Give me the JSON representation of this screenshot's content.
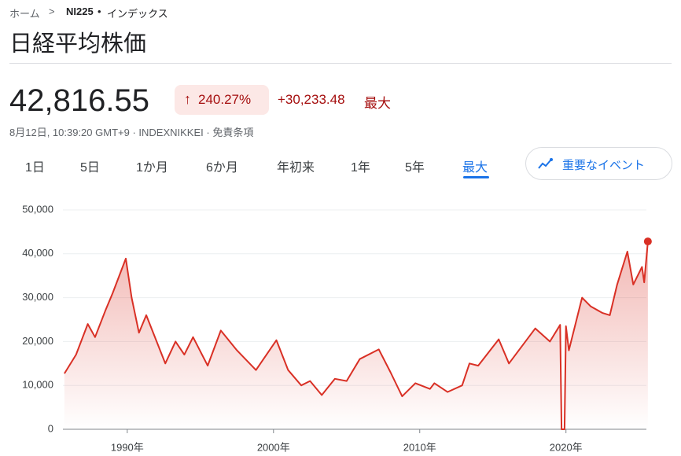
{
  "breadcrumb": {
    "home": "ホーム",
    "symbol": "NI225",
    "kind": "インデックス"
  },
  "title": "日経平均株価",
  "price": "42,816.55",
  "change_percent": "240.27%",
  "change": "+30,233.48",
  "period": "最大",
  "info": {
    "time": "8月12日, 10:39:20 GMT+9",
    "exchange": "INDEXNIKKEI",
    "disclaimer": "免責条項"
  },
  "tabs": [
    "1日",
    "5日",
    "1か月",
    "6か月",
    "年初来",
    "1年",
    "5年",
    "最大"
  ],
  "events_button": "重要なイベント",
  "chart_data": {
    "type": "line",
    "x": [
      1985.7,
      1986.5,
      1987.3,
      1987.8,
      1988.5,
      1989.0,
      1989.9,
      1990.3,
      1990.8,
      1991.3,
      1992.6,
      1993.3,
      1993.9,
      1994.5,
      1995.5,
      1996.4,
      1997.5,
      1998.8,
      2000.2,
      2001.0,
      2001.9,
      2002.5,
      2003.3,
      2004.2,
      2005.0,
      2005.9,
      2007.2,
      2008.0,
      2008.8,
      2009.7,
      2010.7,
      2011.0,
      2011.9,
      2012.9,
      2013.4,
      2014.0,
      2015.4,
      2016.1,
      2017.9,
      2018.9,
      2019.6,
      2019.7,
      2019.9,
      2020.0,
      2020.2,
      2021.1,
      2021.7,
      2022.5,
      2023.0,
      2023.5,
      2024.2,
      2024.6,
      2025.2,
      2025.35,
      2025.6
    ],
    "series": [
      {
        "color": "#d93025",
        "values": [
          12700,
          17000,
          24000,
          21000,
          27000,
          31000,
          38900,
          30000,
          22000,
          26000,
          15000,
          20000,
          17000,
          21000,
          14500,
          22500,
          18000,
          13500,
          20300,
          13500,
          10000,
          11000,
          7800,
          11500,
          11000,
          16000,
          18200,
          13000,
          7500,
          10500,
          9200,
          10500,
          8500,
          10000,
          15000,
          14500,
          20500,
          15000,
          23000,
          20000,
          23800,
          0,
          0,
          23500,
          18000,
          30000,
          28000,
          26500,
          26000,
          33000,
          40500,
          33000,
          37000,
          33500,
          42816.55
        ]
      }
    ],
    "xlim": [
      1985.6,
      2025.5
    ],
    "ylim": [
      0,
      50000
    ],
    "xticks": [
      {
        "value": 1990,
        "label": "1990年"
      },
      {
        "value": 2000,
        "label": "2000年"
      },
      {
        "value": 2010,
        "label": "2010年"
      },
      {
        "value": 2020,
        "label": "2020年"
      }
    ],
    "yticks": [
      0,
      {
        "value": 10000,
        "label": "10,000"
      },
      {
        "value": 20000,
        "label": "20,000"
      },
      {
        "value": 30000,
        "label": "30,000"
      },
      {
        "value": 40000,
        "label": "40,000"
      },
      {
        "value": 50000,
        "label": "50,000"
      }
    ],
    "grid": true
  }
}
